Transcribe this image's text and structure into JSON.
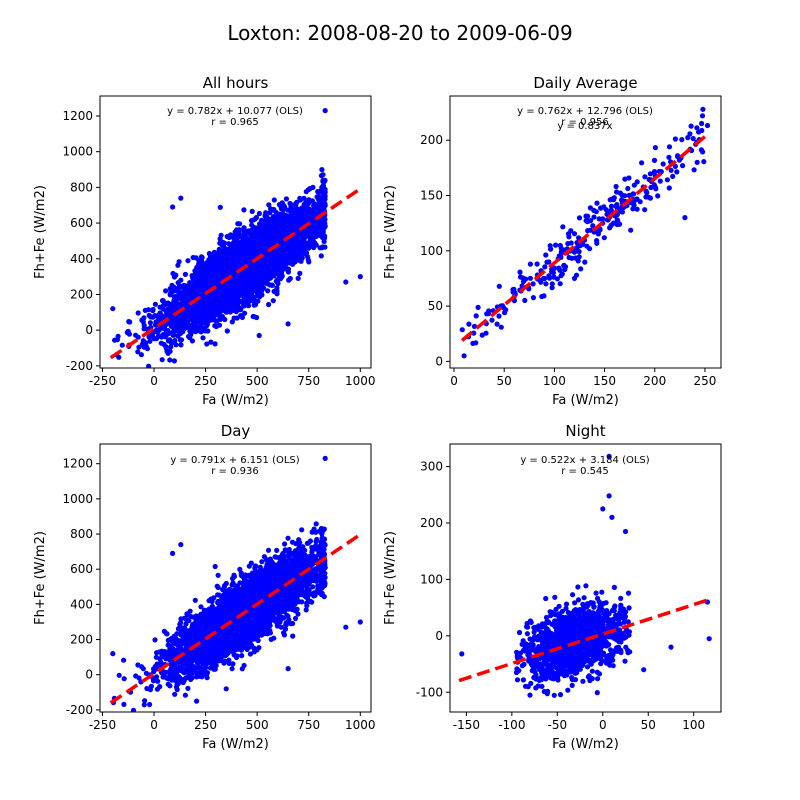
{
  "figure": {
    "title": "Loxton: 2008-08-20 to 2009-06-09",
    "colors": {
      "points": "#0000ff",
      "fit": "#ff0000",
      "axes": "#000000"
    }
  },
  "chart_data": [
    {
      "id": "all",
      "type": "scatter",
      "title": "All hours",
      "xlabel": "Fa (W/m2)",
      "ylabel": "Fh+Fe (W/m2)",
      "xlim": [
        -262,
        1052
      ],
      "ylim": [
        -212,
        1312
      ],
      "xticks": [
        -250,
        0,
        250,
        500,
        750,
        1000
      ],
      "yticks": [
        -200,
        0,
        200,
        400,
        600,
        800,
        1000,
        1200
      ],
      "annotations": [
        "y = 0.782x + 10.077 (OLS)",
        "r = 0.965"
      ],
      "fit": {
        "slope": 0.782,
        "intercept": 10.077,
        "x_range": [
          -210,
          1000
        ]
      },
      "points": {
        "count": 5000,
        "x_mean": 430,
        "x_sd": 190,
        "x_min": -200,
        "x_max": 830,
        "noise_sd": 90,
        "slope": 0.78,
        "intercept": 10
      },
      "outliers": [
        [
          830,
          1230
        ],
        [
          930,
          270
        ],
        [
          1000,
          300
        ],
        [
          130,
          740
        ],
        [
          90,
          690
        ],
        [
          -200,
          120
        ],
        [
          650,
          35
        ],
        [
          510,
          -30
        ]
      ]
    },
    {
      "id": "daily",
      "type": "scatter",
      "title": "Daily Average",
      "xlabel": "Fa (W/m2)",
      "ylabel": "Fh+Fe (W/m2)",
      "xlim": [
        -4,
        266
      ],
      "ylim": [
        -6,
        240
      ],
      "xticks": [
        0,
        50,
        100,
        150,
        200,
        250
      ],
      "yticks": [
        0,
        50,
        100,
        150,
        200
      ],
      "annotations": [
        "y = 0.762x + 12.796 (OLS)",
        "r = 0.956",
        "y = 0.837x"
      ],
      "fit": {
        "slope": 0.762,
        "intercept": 12.796,
        "x_range": [
          8,
          252
        ]
      },
      "points": {
        "count": 290,
        "x_mean": 140,
        "x_sd": 62,
        "x_min": 8,
        "x_max": 255,
        "noise_sd": 13,
        "slope": 0.78,
        "intercept": 10
      },
      "outliers": [
        [
          10,
          5
        ],
        [
          248,
          228
        ],
        [
          230,
          130
        ],
        [
          120,
          75
        ]
      ]
    },
    {
      "id": "day",
      "type": "scatter",
      "title": "Day",
      "xlabel": "Fa (W/m2)",
      "ylabel": "Fh+Fe (W/m2)",
      "xlim": [
        -262,
        1052
      ],
      "ylim": [
        -212,
        1312
      ],
      "xticks": [
        -250,
        0,
        250,
        500,
        750,
        1000
      ],
      "yticks": [
        -200,
        0,
        200,
        400,
        600,
        800,
        1000,
        1200
      ],
      "annotations": [
        "y = 0.791x + 6.151 (OLS)",
        "r = 0.936"
      ],
      "fit": {
        "slope": 0.791,
        "intercept": 6.151,
        "x_range": [
          -210,
          1000
        ]
      },
      "points": {
        "count": 4200,
        "x_mean": 450,
        "x_sd": 180,
        "x_min": -200,
        "x_max": 830,
        "noise_sd": 90,
        "slope": 0.79,
        "intercept": 6
      },
      "outliers": [
        [
          830,
          1230
        ],
        [
          930,
          270
        ],
        [
          1000,
          300
        ],
        [
          130,
          740
        ],
        [
          90,
          690
        ],
        [
          -200,
          120
        ],
        [
          650,
          35
        ],
        [
          350,
          -80
        ]
      ]
    },
    {
      "id": "night",
      "type": "scatter",
      "title": "Night",
      "xlabel": "Fa (W/m2)",
      "ylabel": "Fh+Fe (W/m2)",
      "xlim": [
        -168,
        130
      ],
      "ylim": [
        -135,
        340
      ],
      "xticks": [
        -150,
        -100,
        -50,
        0,
        50,
        100
      ],
      "yticks": [
        -100,
        0,
        100,
        200,
        300
      ],
      "annotations": [
        "y = 0.522x + 3.184 (OLS)",
        "r = 0.545"
      ],
      "fit": {
        "slope": 0.522,
        "intercept": 3.184,
        "x_range": [
          -158,
          118
        ]
      },
      "points": {
        "count": 1600,
        "x_mean": -30,
        "x_sd": 25,
        "x_min": -95,
        "x_max": 30,
        "noise_sd": 28,
        "slope": 0.45,
        "intercept": 3
      },
      "outliers": [
        [
          7,
          318
        ],
        [
          7,
          248
        ],
        [
          -155,
          -32
        ],
        [
          115,
          60
        ],
        [
          117,
          -5
        ],
        [
          0,
          225
        ],
        [
          25,
          185
        ],
        [
          10,
          210
        ],
        [
          -80,
          -105
        ],
        [
          45,
          -60
        ],
        [
          75,
          -20
        ]
      ]
    }
  ]
}
